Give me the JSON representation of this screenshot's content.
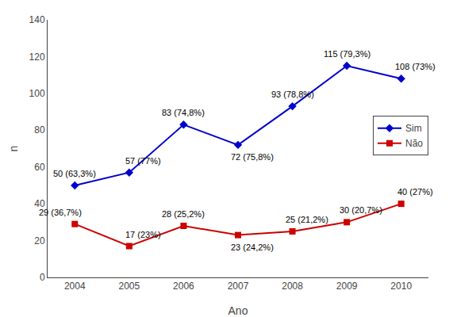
{
  "chart_data": {
    "type": "line",
    "x": [
      2004,
      2005,
      2006,
      2007,
      2008,
      2009,
      2010
    ],
    "xlabel": "Ano",
    "ylabel": "n",
    "xlim": [
      2003.5,
      2010.5
    ],
    "xticks": [
      2004,
      2005,
      2006,
      2007,
      2008,
      2009,
      2010
    ],
    "ylim": [
      0,
      140
    ],
    "yticks": [
      0,
      20,
      40,
      60,
      80,
      100,
      120,
      140
    ],
    "grid": false,
    "legend": "right",
    "data_labels": true,
    "series": [
      {
        "name": "Sim",
        "color": "#0000CC",
        "marker": "diamond",
        "values": [
          50,
          57,
          83,
          72,
          93,
          115,
          108
        ],
        "value_labels": [
          "50 (63,3%)",
          "57 (77%)",
          "83 (74,8%)",
          "72 (75,8%)",
          "93 (78,8%)",
          "115 (79,3%)",
          "108 (73%)"
        ]
      },
      {
        "name": "Não",
        "color": "#CC0000",
        "marker": "square",
        "values": [
          29,
          17,
          28,
          23,
          25,
          30,
          40
        ],
        "value_labels": [
          "29 (36,7%)",
          "17 (23%)",
          "28 (25,2%)",
          "23 (24,2%)",
          "25 (21,2%)",
          "30 (20,7%)",
          "40 (27%)"
        ]
      }
    ]
  }
}
